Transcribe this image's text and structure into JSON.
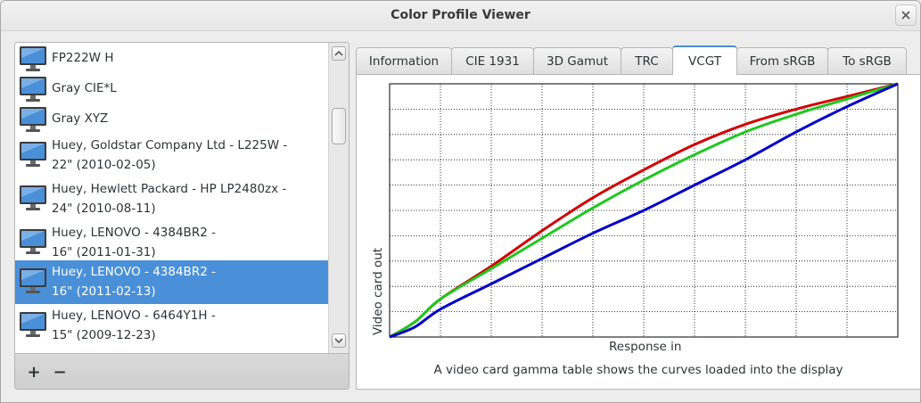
{
  "window": {
    "title": "Color Profile Viewer"
  },
  "profiles": [
    {
      "line1": "FP222W H",
      "line2": ""
    },
    {
      "line1": "Gray CIE*L",
      "line2": ""
    },
    {
      "line1": "Gray XYZ",
      "line2": ""
    },
    {
      "line1": "Huey, Goldstar Company Ltd - L225W -",
      "line2": "22\" (2010-02-05)"
    },
    {
      "line1": "Huey, Hewlett Packard - HP LP2480zx -",
      "line2": "24\" (2010-08-11)"
    },
    {
      "line1": "Huey, LENOVO - 4384BR2 -",
      "line2": "16\" (2011-01-31)"
    },
    {
      "line1": "Huey, LENOVO - 4384BR2 -",
      "line2": "16\" (2011-02-13)"
    },
    {
      "line1": "Huey, LENOVO - 6464Y1H -",
      "line2": "15\" (2009-12-23)"
    }
  ],
  "selected_profile_index": 6,
  "toolbar": {
    "add_label": "+",
    "remove_label": "−"
  },
  "tabs": [
    {
      "label": "Information"
    },
    {
      "label": "CIE 1931"
    },
    {
      "label": "3D Gamut"
    },
    {
      "label": "TRC"
    },
    {
      "label": "VCGT"
    },
    {
      "label": "From sRGB"
    },
    {
      "label": "To sRGB"
    }
  ],
  "active_tab": "VCGT",
  "colors": {
    "accent": "#4a90d9",
    "red": "#d40000",
    "green": "#1ec81e",
    "blue": "#0000cc"
  },
  "chart_data": {
    "type": "line",
    "title": "",
    "xlabel": "Response in",
    "ylabel": "Video card out",
    "caption": "A video card gamma table shows the curves loaded into the display",
    "xlim": [
      0,
      1
    ],
    "ylim": [
      0,
      1
    ],
    "grid": true,
    "series": [
      {
        "color": "#d40000",
        "x": [
          0,
          0.05,
          0.1,
          0.2,
          0.3,
          0.4,
          0.5,
          0.6,
          0.7,
          0.8,
          0.9,
          1.0
        ],
        "y": [
          0,
          0.06,
          0.15,
          0.28,
          0.42,
          0.55,
          0.66,
          0.76,
          0.84,
          0.9,
          0.95,
          1.0
        ]
      },
      {
        "color": "#1ec81e",
        "x": [
          0,
          0.05,
          0.1,
          0.2,
          0.3,
          0.4,
          0.5,
          0.6,
          0.7,
          0.8,
          0.9,
          1.0
        ],
        "y": [
          0,
          0.06,
          0.15,
          0.27,
          0.39,
          0.51,
          0.62,
          0.72,
          0.81,
          0.88,
          0.94,
          1.0
        ]
      },
      {
        "color": "#0000cc",
        "x": [
          0,
          0.05,
          0.1,
          0.2,
          0.3,
          0.4,
          0.5,
          0.6,
          0.7,
          0.8,
          0.9,
          1.0
        ],
        "y": [
          0,
          0.04,
          0.11,
          0.21,
          0.31,
          0.41,
          0.5,
          0.6,
          0.7,
          0.81,
          0.91,
          1.0
        ]
      }
    ]
  }
}
